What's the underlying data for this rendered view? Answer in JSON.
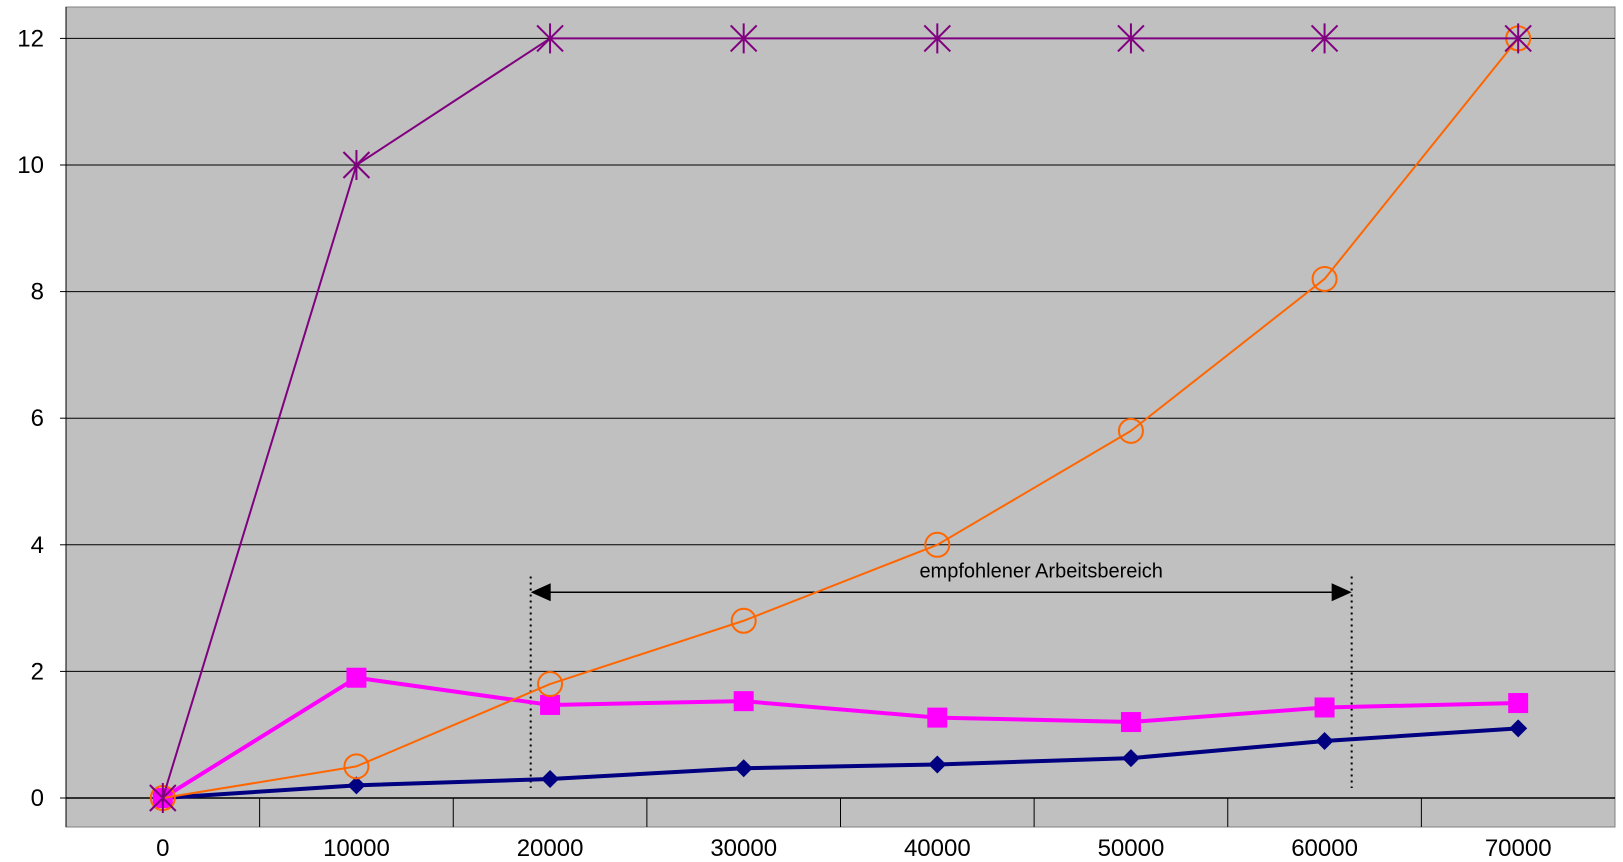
{
  "chart_data": {
    "type": "line",
    "title": "",
    "xlabel": "",
    "ylabel": "",
    "x": [
      0,
      10000,
      20000,
      30000,
      40000,
      50000,
      60000,
      70000
    ],
    "xlim": [
      -5000,
      75000
    ],
    "ylim": [
      0,
      12.6
    ],
    "x_ticks": [
      "0",
      "10000",
      "20000",
      "30000",
      "40000",
      "50000",
      "60000",
      "70000"
    ],
    "y_ticks": [
      "0",
      "2",
      "4",
      "6",
      "8",
      "10",
      "12"
    ],
    "grid": "horizontal",
    "legend": "none",
    "plot_background": "#c0c0c0",
    "series": [
      {
        "color": "#000080",
        "marker": "diamond",
        "line_width": "thick",
        "values": [
          0,
          0.2,
          0.3,
          0.47,
          0.53,
          0.63,
          0.9,
          1.1
        ]
      },
      {
        "color": "#ff00ff",
        "marker": "square",
        "line_width": "thick",
        "values": [
          0,
          1.9,
          1.47,
          1.53,
          1.27,
          1.2,
          1.43,
          1.5
        ]
      },
      {
        "color": "#ff6600",
        "marker": "circle-open",
        "line_width": "thin",
        "values": [
          0,
          0.5,
          1.8,
          2.8,
          4.0,
          5.8,
          8.2,
          12.0
        ]
      },
      {
        "color": "#800080",
        "marker": "star",
        "line_width": "thin",
        "values": [
          0,
          10.0,
          12.0,
          12.0,
          12.0,
          12.0,
          12.0,
          12.0
        ]
      }
    ],
    "annotations": [
      {
        "text": "empfohlener Arbeitsbereich",
        "x_start": 19000,
        "x_end": 61400,
        "y": 3.25
      }
    ]
  }
}
